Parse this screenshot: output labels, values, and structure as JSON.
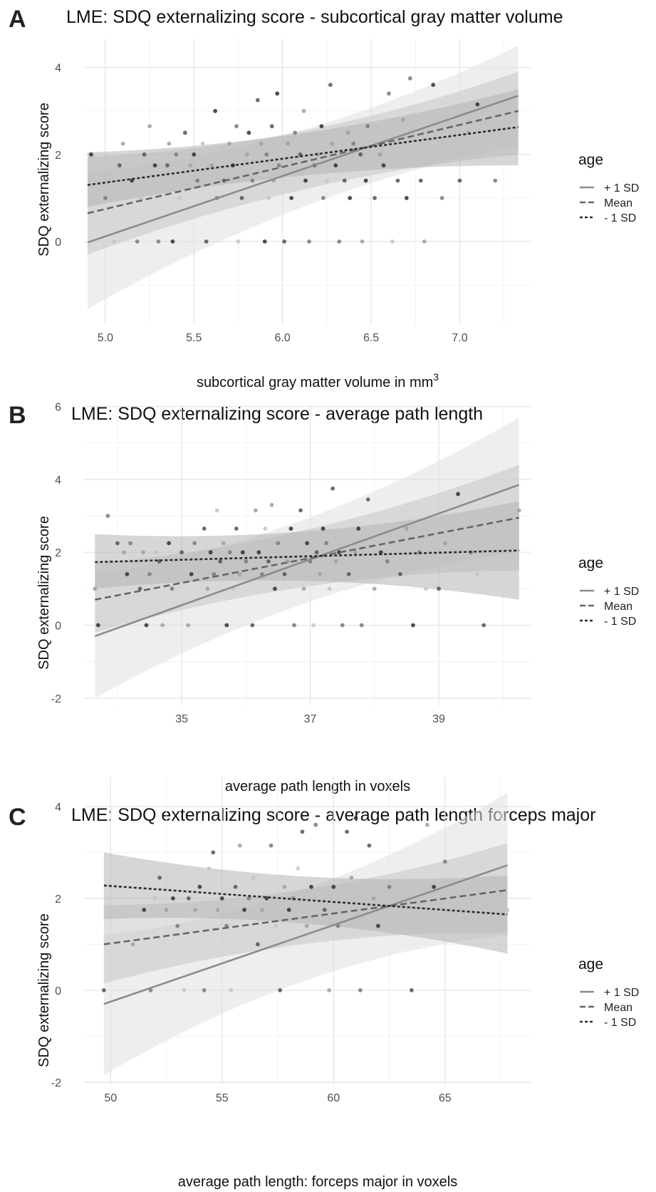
{
  "chart_data": [
    {
      "type": "scatter",
      "panel": "A",
      "title": "LME: SDQ externalizing score - subcortical gray matter volume",
      "xlabel": "subcortical gray matter volume in mm",
      "xlabel_superscript": "3",
      "ylabel": "SDQ externalizing score",
      "xlim": [
        4.88,
        7.4
      ],
      "ylim": [
        -1.9,
        4.65
      ],
      "xticks": [
        5.0,
        5.5,
        6.0,
        6.5,
        7.0
      ],
      "xtick_labels": [
        "5.0",
        "5.5",
        "6.0",
        "6.5",
        "7.0"
      ],
      "yticks": [
        0,
        2,
        4
      ],
      "ytick_labels": [
        "0",
        "2",
        "4"
      ],
      "grid": true,
      "legend": {
        "title": "age",
        "position": "right",
        "entries": [
          "+ 1 SD",
          "Mean",
          "- 1 SD"
        ]
      },
      "series": [
        {
          "name": "+ 1 SD",
          "linestyle": "solid",
          "color": "#8c8c8c",
          "x": [
            4.9,
            7.33
          ],
          "y": [
            -0.02,
            3.35
          ],
          "band_lower": [
            -1.55,
            2.2
          ],
          "band_upper": [
            1.6,
            4.5
          ],
          "band_color": "#e0e0e0"
        },
        {
          "name": "Mean",
          "linestyle": "dashed",
          "color": "#666666",
          "x": [
            4.9,
            7.33
          ],
          "y": [
            0.65,
            3.0
          ],
          "band_lower": [
            -0.3,
            2.0
          ],
          "band_upper": [
            1.95,
            3.9
          ],
          "band_color": "#c6c6c6"
        },
        {
          "name": "- 1 SD",
          "linestyle": "dotted",
          "color": "#2d2d2d",
          "x": [
            4.9,
            7.33
          ],
          "y": [
            1.3,
            2.63
          ],
          "band_lower": [
            0.8,
            1.75
          ],
          "band_upper": [
            2.05,
            3.5
          ],
          "band_color": "#b4b4b4"
        }
      ],
      "points": [
        [
          4.92,
          2.0
        ],
        [
          5.0,
          1.0
        ],
        [
          5.05,
          0.0
        ],
        [
          5.08,
          1.75
        ],
        [
          5.1,
          2.25
        ],
        [
          5.15,
          1.4
        ],
        [
          5.18,
          0.0
        ],
        [
          5.2,
          1.0
        ],
        [
          5.22,
          2.0
        ],
        [
          5.25,
          2.65
        ],
        [
          5.28,
          1.75
        ],
        [
          5.3,
          0.0
        ],
        [
          5.32,
          1.4
        ],
        [
          5.35,
          1.75
        ],
        [
          5.36,
          2.25
        ],
        [
          5.38,
          0.0
        ],
        [
          5.4,
          2.0
        ],
        [
          5.42,
          1.0
        ],
        [
          5.45,
          2.5
        ],
        [
          5.48,
          1.75
        ],
        [
          5.5,
          2.0
        ],
        [
          5.52,
          1.4
        ],
        [
          5.55,
          2.25
        ],
        [
          5.57,
          0.0
        ],
        [
          5.6,
          1.75
        ],
        [
          5.62,
          3.0
        ],
        [
          5.63,
          1.0
        ],
        [
          5.65,
          2.0
        ],
        [
          5.67,
          1.4
        ],
        [
          5.7,
          2.25
        ],
        [
          5.72,
          1.75
        ],
        [
          5.74,
          2.65
        ],
        [
          5.75,
          0.0
        ],
        [
          5.77,
          1.0
        ],
        [
          5.8,
          2.0
        ],
        [
          5.81,
          2.5
        ],
        [
          5.83,
          1.4
        ],
        [
          5.85,
          1.75
        ],
        [
          5.86,
          3.25
        ],
        [
          5.88,
          2.25
        ],
        [
          5.9,
          0.0
        ],
        [
          5.91,
          2.0
        ],
        [
          5.92,
          1.0
        ],
        [
          5.94,
          2.65
        ],
        [
          5.95,
          1.4
        ],
        [
          5.97,
          3.4
        ],
        [
          5.98,
          1.75
        ],
        [
          6.0,
          2.0
        ],
        [
          6.01,
          0.0
        ],
        [
          6.03,
          2.25
        ],
        [
          6.05,
          1.0
        ],
        [
          6.07,
          2.5
        ],
        [
          6.08,
          1.75
        ],
        [
          6.1,
          2.0
        ],
        [
          6.12,
          3.0
        ],
        [
          6.13,
          1.4
        ],
        [
          6.15,
          0.0
        ],
        [
          6.17,
          2.25
        ],
        [
          6.18,
          1.75
        ],
        [
          6.2,
          2.0
        ],
        [
          6.22,
          2.65
        ],
        [
          6.23,
          1.0
        ],
        [
          6.25,
          1.4
        ],
        [
          6.27,
          3.6
        ],
        [
          6.28,
          2.25
        ],
        [
          6.3,
          1.75
        ],
        [
          6.32,
          0.0
        ],
        [
          6.33,
          2.0
        ],
        [
          6.35,
          1.4
        ],
        [
          6.37,
          2.5
        ],
        [
          6.38,
          1.0
        ],
        [
          6.4,
          2.25
        ],
        [
          6.42,
          1.75
        ],
        [
          6.44,
          2.0
        ],
        [
          6.45,
          0.0
        ],
        [
          6.47,
          1.4
        ],
        [
          6.48,
          2.65
        ],
        [
          6.5,
          2.25
        ],
        [
          6.52,
          1.0
        ],
        [
          6.55,
          2.0
        ],
        [
          6.57,
          1.75
        ],
        [
          6.6,
          3.4
        ],
        [
          6.62,
          0.0
        ],
        [
          6.65,
          1.4
        ],
        [
          6.68,
          2.8
        ],
        [
          6.7,
          1.0
        ],
        [
          6.72,
          3.75
        ],
        [
          6.75,
          2.0
        ],
        [
          6.78,
          1.4
        ],
        [
          6.8,
          0.0
        ],
        [
          6.85,
          3.6
        ],
        [
          6.9,
          1.0
        ],
        [
          6.95,
          2.25
        ],
        [
          7.0,
          1.4
        ],
        [
          7.05,
          2.5
        ],
        [
          7.1,
          3.15
        ],
        [
          7.2,
          1.4
        ]
      ]
    },
    {
      "type": "scatter",
      "panel": "B",
      "title": "LME: SDQ externalizing score - average path length",
      "xlabel": "average path length in voxels",
      "ylabel": "SDQ externalizing score",
      "xlim": [
        33.48,
        40.43
      ],
      "ylim": [
        -2.2,
        6.05
      ],
      "xticks": [
        35,
        37,
        39
      ],
      "xtick_labels": [
        "35",
        "37",
        "39"
      ],
      "yticks": [
        -2,
        0,
        2,
        4,
        6
      ],
      "ytick_labels": [
        "-2",
        "0",
        "2",
        "4",
        "6"
      ],
      "grid": true,
      "legend": {
        "title": "age",
        "position": "right",
        "entries": [
          "+ 1 SD",
          "Mean",
          "- 1 SD"
        ]
      },
      "series": [
        {
          "name": "+ 1 SD",
          "linestyle": "solid",
          "color": "#8c8c8c",
          "x": [
            33.65,
            40.25
          ],
          "y": [
            -0.3,
            3.85
          ],
          "band_lower": [
            -2.0,
            2.0
          ],
          "band_upper": [
            1.4,
            5.7
          ],
          "band_color": "#e0e0e0"
        },
        {
          "name": "Mean",
          "linestyle": "dashed",
          "color": "#666666",
          "x": [
            33.65,
            40.25
          ],
          "y": [
            0.7,
            2.95
          ],
          "band_lower": [
            -0.2,
            1.5
          ],
          "band_upper": [
            1.7,
            4.4
          ],
          "band_color": "#c6c6c6"
        },
        {
          "name": "- 1 SD",
          "linestyle": "dotted",
          "color": "#2d2d2d",
          "x": [
            33.65,
            40.25
          ],
          "y": [
            1.73,
            2.05
          ],
          "band_lower": [
            1.0,
            0.7
          ],
          "band_upper": [
            2.5,
            3.4
          ],
          "band_color": "#b4b4b4"
        }
      ],
      "points": [
        [
          33.65,
          1.0
        ],
        [
          33.7,
          0.0
        ],
        [
          33.85,
          3.0
        ],
        [
          33.9,
          1.75
        ],
        [
          34.0,
          2.25
        ],
        [
          34.1,
          2.0
        ],
        [
          34.15,
          1.4
        ],
        [
          34.2,
          2.25
        ],
        [
          34.3,
          1.75
        ],
        [
          34.35,
          1.0
        ],
        [
          34.4,
          2.0
        ],
        [
          34.45,
          0.0
        ],
        [
          34.5,
          1.4
        ],
        [
          34.6,
          2.0
        ],
        [
          34.65,
          1.75
        ],
        [
          34.7,
          0.0
        ],
        [
          34.8,
          2.25
        ],
        [
          34.85,
          1.0
        ],
        [
          34.9,
          1.75
        ],
        [
          35.0,
          2.0
        ],
        [
          35.1,
          0.0
        ],
        [
          35.15,
          1.4
        ],
        [
          35.2,
          2.25
        ],
        [
          35.3,
          1.75
        ],
        [
          35.35,
          2.65
        ],
        [
          35.4,
          1.0
        ],
        [
          35.45,
          2.0
        ],
        [
          35.5,
          1.4
        ],
        [
          35.55,
          3.15
        ],
        [
          35.6,
          1.75
        ],
        [
          35.65,
          2.25
        ],
        [
          35.7,
          0.0
        ],
        [
          35.75,
          2.0
        ],
        [
          35.8,
          1.0
        ],
        [
          35.85,
          2.65
        ],
        [
          35.9,
          1.4
        ],
        [
          35.95,
          2.0
        ],
        [
          36.0,
          1.75
        ],
        [
          36.05,
          2.25
        ],
        [
          36.1,
          0.0
        ],
        [
          36.15,
          3.15
        ],
        [
          36.2,
          2.0
        ],
        [
          36.25,
          1.4
        ],
        [
          36.3,
          2.65
        ],
        [
          36.35,
          1.75
        ],
        [
          36.4,
          3.3
        ],
        [
          36.45,
          1.0
        ],
        [
          36.5,
          2.25
        ],
        [
          36.55,
          2.0
        ],
        [
          36.6,
          1.4
        ],
        [
          36.65,
          1.75
        ],
        [
          36.7,
          2.65
        ],
        [
          36.75,
          0.0
        ],
        [
          36.8,
          2.0
        ],
        [
          36.85,
          3.15
        ],
        [
          36.9,
          1.0
        ],
        [
          36.95,
          2.25
        ],
        [
          37.0,
          1.75
        ],
        [
          37.05,
          0.0
        ],
        [
          37.1,
          2.0
        ],
        [
          37.15,
          1.4
        ],
        [
          37.2,
          2.65
        ],
        [
          37.25,
          2.25
        ],
        [
          37.3,
          1.0
        ],
        [
          37.35,
          3.75
        ],
        [
          37.4,
          1.75
        ],
        [
          37.45,
          2.0
        ],
        [
          37.5,
          0.0
        ],
        [
          37.55,
          2.25
        ],
        [
          37.6,
          1.4
        ],
        [
          37.7,
          2.0
        ],
        [
          37.75,
          2.65
        ],
        [
          37.8,
          0.0
        ],
        [
          37.85,
          1.75
        ],
        [
          37.9,
          3.45
        ],
        [
          38.0,
          1.0
        ],
        [
          38.1,
          2.0
        ],
        [
          38.2,
          1.75
        ],
        [
          38.3,
          2.25
        ],
        [
          38.4,
          1.4
        ],
        [
          38.5,
          2.65
        ],
        [
          38.6,
          0.0
        ],
        [
          38.7,
          2.0
        ],
        [
          38.8,
          1.0
        ],
        [
          39.0,
          1.0
        ],
        [
          39.1,
          2.25
        ],
        [
          39.3,
          3.6
        ],
        [
          39.5,
          2.0
        ],
        [
          39.6,
          1.4
        ],
        [
          39.7,
          0.0
        ],
        [
          40.25,
          3.15
        ]
      ]
    },
    {
      "type": "scatter",
      "panel": "C",
      "title": "LME: SDQ externalizing score - average path length forceps major",
      "xlabel": "average path length: forceps major in voxels",
      "ylabel": "SDQ externalizing score",
      "xlim": [
        48.81,
        68.84
      ],
      "ylim": [
        -2.05,
        4.65
      ],
      "xticks": [
        50,
        55,
        60,
        65
      ],
      "xtick_labels": [
        "50",
        "55",
        "60",
        "65"
      ],
      "yticks": [
        -2,
        0,
        2,
        4
      ],
      "ytick_labels": [
        "-2",
        "0",
        "2",
        "4"
      ],
      "grid": true,
      "legend": {
        "title": "age",
        "position": "right",
        "entries": [
          "+ 1 SD",
          "Mean",
          "- 1 SD"
        ]
      },
      "series": [
        {
          "name": "+ 1 SD",
          "linestyle": "solid",
          "color": "#8c8c8c",
          "x": [
            49.7,
            67.8
          ],
          "y": [
            -0.3,
            2.72
          ],
          "band_lower": [
            -1.85,
            1.2
          ],
          "band_upper": [
            1.2,
            4.3
          ],
          "band_color": "#e0e0e0"
        },
        {
          "name": "Mean",
          "linestyle": "dashed",
          "color": "#666666",
          "x": [
            49.7,
            67.8
          ],
          "y": [
            1.0,
            2.18
          ],
          "band_lower": [
            0.15,
            1.25
          ],
          "band_upper": [
            1.85,
            3.2
          ],
          "band_color": "#c6c6c6"
        },
        {
          "name": "- 1 SD",
          "linestyle": "dotted",
          "color": "#2d2d2d",
          "x": [
            49.7,
            67.8
          ],
          "y": [
            2.28,
            1.65
          ],
          "band_lower": [
            1.55,
            0.8
          ],
          "band_upper": [
            3.0,
            2.5
          ],
          "band_color": "#b4b4b4"
        }
      ],
      "points": [
        [
          49.7,
          0.0
        ],
        [
          51.0,
          1.0
        ],
        [
          51.5,
          1.75
        ],
        [
          51.8,
          0.0
        ],
        [
          52.0,
          2.0
        ],
        [
          52.2,
          2.45
        ],
        [
          52.5,
          1.75
        ],
        [
          52.8,
          2.0
        ],
        [
          53.0,
          1.4
        ],
        [
          53.3,
          0.0
        ],
        [
          53.5,
          2.0
        ],
        [
          53.8,
          1.75
        ],
        [
          54.0,
          2.25
        ],
        [
          54.2,
          0.0
        ],
        [
          54.4,
          2.65
        ],
        [
          54.6,
          3.0
        ],
        [
          54.8,
          1.75
        ],
        [
          55.0,
          2.0
        ],
        [
          55.2,
          1.4
        ],
        [
          55.4,
          0.0
        ],
        [
          55.6,
          2.25
        ],
        [
          55.8,
          3.15
        ],
        [
          56.0,
          1.75
        ],
        [
          56.2,
          2.0
        ],
        [
          56.4,
          2.45
        ],
        [
          56.6,
          1.0
        ],
        [
          56.8,
          1.75
        ],
        [
          57.0,
          2.0
        ],
        [
          57.2,
          3.15
        ],
        [
          57.4,
          1.4
        ],
        [
          57.6,
          0.0
        ],
        [
          57.8,
          2.25
        ],
        [
          58.0,
          1.75
        ],
        [
          58.2,
          2.0
        ],
        [
          58.4,
          2.65
        ],
        [
          58.6,
          3.45
        ],
        [
          58.8,
          1.4
        ],
        [
          59.0,
          2.25
        ],
        [
          59.2,
          3.6
        ],
        [
          59.4,
          2.0
        ],
        [
          59.6,
          1.75
        ],
        [
          59.8,
          0.0
        ],
        [
          60.0,
          2.25
        ],
        [
          60.2,
          1.4
        ],
        [
          60.4,
          2.0
        ],
        [
          60.6,
          3.45
        ],
        [
          60.8,
          2.45
        ],
        [
          61.0,
          3.75
        ],
        [
          61.2,
          0.0
        ],
        [
          61.4,
          1.75
        ],
        [
          61.6,
          3.15
        ],
        [
          61.8,
          2.0
        ],
        [
          62.0,
          1.4
        ],
        [
          62.5,
          2.25
        ],
        [
          63.0,
          1.75
        ],
        [
          63.5,
          0.0
        ],
        [
          64.2,
          3.6
        ],
        [
          64.5,
          2.25
        ],
        [
          65.0,
          2.8
        ],
        [
          67.8,
          1.75
        ]
      ]
    }
  ]
}
